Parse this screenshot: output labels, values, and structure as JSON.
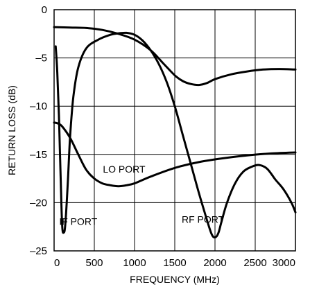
{
  "chart_data": {
    "type": "line",
    "xlabel": "FREQUENCY (MHz)",
    "ylabel": "RETURN LOSS (dB)",
    "xlim": [
      0,
      3000
    ],
    "ylim": [
      -25,
      0
    ],
    "x_ticks": [
      "0",
      "500",
      "1000",
      "1500",
      "2000",
      "2500",
      "3000"
    ],
    "y_ticks": [
      "0",
      "–5",
      "–10",
      "–15",
      "–20",
      "–25"
    ],
    "grid": true,
    "series": [
      {
        "name": "IF PORT",
        "points": [
          [
            20,
            -3.8
          ],
          [
            40,
            -6.5
          ],
          [
            60,
            -11
          ],
          [
            80,
            -17
          ],
          [
            100,
            -22.3
          ],
          [
            120,
            -23.1
          ],
          [
            140,
            -22.2
          ],
          [
            170,
            -18
          ],
          [
            200,
            -13
          ],
          [
            240,
            -9
          ],
          [
            300,
            -6
          ],
          [
            400,
            -4
          ],
          [
            550,
            -3.1
          ],
          [
            700,
            -2.6
          ],
          [
            800,
            -2.45
          ],
          [
            900,
            -2.4
          ],
          [
            1000,
            -2.6
          ],
          [
            1100,
            -3.2
          ],
          [
            1200,
            -4.2
          ],
          [
            1300,
            -5.6
          ],
          [
            1400,
            -7.5
          ],
          [
            1500,
            -10
          ],
          [
            1600,
            -13
          ],
          [
            1700,
            -16
          ],
          [
            1800,
            -19
          ],
          [
            1900,
            -21.8
          ],
          [
            1960,
            -23.3
          ],
          [
            2000,
            -23.6
          ],
          [
            2040,
            -23.2
          ],
          [
            2080,
            -22
          ],
          [
            2150,
            -20
          ],
          [
            2250,
            -18
          ],
          [
            2350,
            -16.8
          ],
          [
            2450,
            -16.3
          ],
          [
            2550,
            -16.1
          ],
          [
            2650,
            -16.5
          ],
          [
            2750,
            -17.6
          ],
          [
            2850,
            -18.6
          ],
          [
            2950,
            -20
          ],
          [
            3000,
            -21
          ]
        ]
      },
      {
        "name": "LO PORT",
        "points": [
          [
            0,
            -11.7
          ],
          [
            50,
            -11.8
          ],
          [
            100,
            -12.1
          ],
          [
            200,
            -13.3
          ],
          [
            300,
            -15
          ],
          [
            400,
            -16.6
          ],
          [
            500,
            -17.5
          ],
          [
            600,
            -18
          ],
          [
            700,
            -18.2
          ],
          [
            800,
            -18.3
          ],
          [
            900,
            -18.2
          ],
          [
            1000,
            -18
          ],
          [
            1200,
            -17.3
          ],
          [
            1500,
            -16.4
          ],
          [
            1800,
            -15.8
          ],
          [
            2100,
            -15.4
          ],
          [
            2400,
            -15.1
          ],
          [
            2700,
            -14.9
          ],
          [
            3000,
            -14.8
          ]
        ]
      },
      {
        "name": "RF PORT",
        "points": [
          [
            0,
            -1.8
          ],
          [
            200,
            -1.85
          ],
          [
            400,
            -1.9
          ],
          [
            600,
            -2.1
          ],
          [
            800,
            -2.5
          ],
          [
            1000,
            -3.1
          ],
          [
            1200,
            -4.2
          ],
          [
            1350,
            -5.5
          ],
          [
            1500,
            -6.8
          ],
          [
            1600,
            -7.4
          ],
          [
            1700,
            -7.7
          ],
          [
            1800,
            -7.8
          ],
          [
            1900,
            -7.6
          ],
          [
            2000,
            -7.2
          ],
          [
            2200,
            -6.7
          ],
          [
            2400,
            -6.4
          ],
          [
            2600,
            -6.2
          ],
          [
            2800,
            -6.15
          ],
          [
            3000,
            -6.2
          ]
        ]
      }
    ],
    "annotations": [
      {
        "text": "IF PORT",
        "x": 300,
        "y": -22.3
      },
      {
        "text": "LO PORT",
        "x": 870,
        "y": -16.9
      },
      {
        "text": "RF PORT",
        "x": 1850,
        "y": -22.1
      }
    ]
  }
}
